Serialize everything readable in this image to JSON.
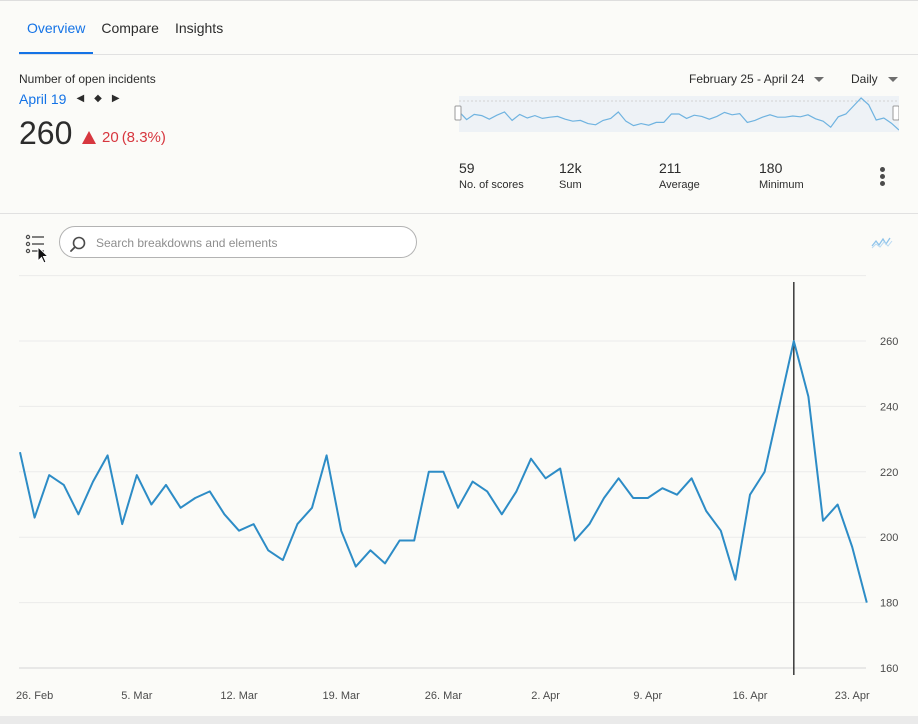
{
  "tabs": [
    {
      "label": "Overview",
      "active": true
    },
    {
      "label": "Compare",
      "active": false
    },
    {
      "label": "Insights",
      "active": false
    }
  ],
  "summary": {
    "metric_label": "Number of open incidents",
    "date_label": "April 19",
    "value": "260",
    "delta": "20",
    "delta_pct": "(8.3%)",
    "delta_color": "#d7373f"
  },
  "controls": {
    "date_range": "February 25 - April 24",
    "granularity": "Daily"
  },
  "stats": [
    {
      "value": "59",
      "label": "No. of scores"
    },
    {
      "value": "12k",
      "label": "Sum"
    },
    {
      "value": "211",
      "label": "Average"
    },
    {
      "value": "180",
      "label": "Minimum"
    }
  ],
  "search": {
    "placeholder": "Search breakdowns and elements"
  },
  "icons": {
    "nav_prev": "triangle-left",
    "nav_current": "diamond",
    "nav_next": "triangle-right",
    "list": "list-icon",
    "search": "magnifier",
    "visualization": "line-chart-icon",
    "more": "kebab-vertical"
  },
  "colors": {
    "accent": "#1473e6",
    "line": "#2d8cc6",
    "negative": "#d7373f"
  },
  "chart_data": {
    "type": "line",
    "x_start": "Feb 25",
    "x_labels": [
      "26. Feb",
      "5. Mar",
      "12. Mar",
      "19. Mar",
      "26. Mar",
      "2. Apr",
      "9. Apr",
      "16. Apr",
      "23. Apr"
    ],
    "y_ticks": [
      160,
      180,
      200,
      220,
      240,
      260
    ],
    "ylim": [
      160,
      280
    ],
    "marker_date": "April 19",
    "grid": true,
    "values": [
      226,
      206,
      219,
      216,
      207,
      217,
      225,
      204,
      219,
      210,
      216,
      209,
      212,
      214,
      207,
      202,
      204,
      196,
      193,
      204,
      209,
      225,
      202,
      191,
      196,
      192,
      199,
      199,
      220,
      220,
      209,
      217,
      214,
      207,
      214,
      224,
      218,
      221,
      199,
      204,
      212,
      218,
      212,
      212,
      215,
      213,
      218,
      208,
      202,
      187,
      213,
      220,
      240,
      260,
      243,
      205,
      210,
      197,
      180
    ]
  }
}
